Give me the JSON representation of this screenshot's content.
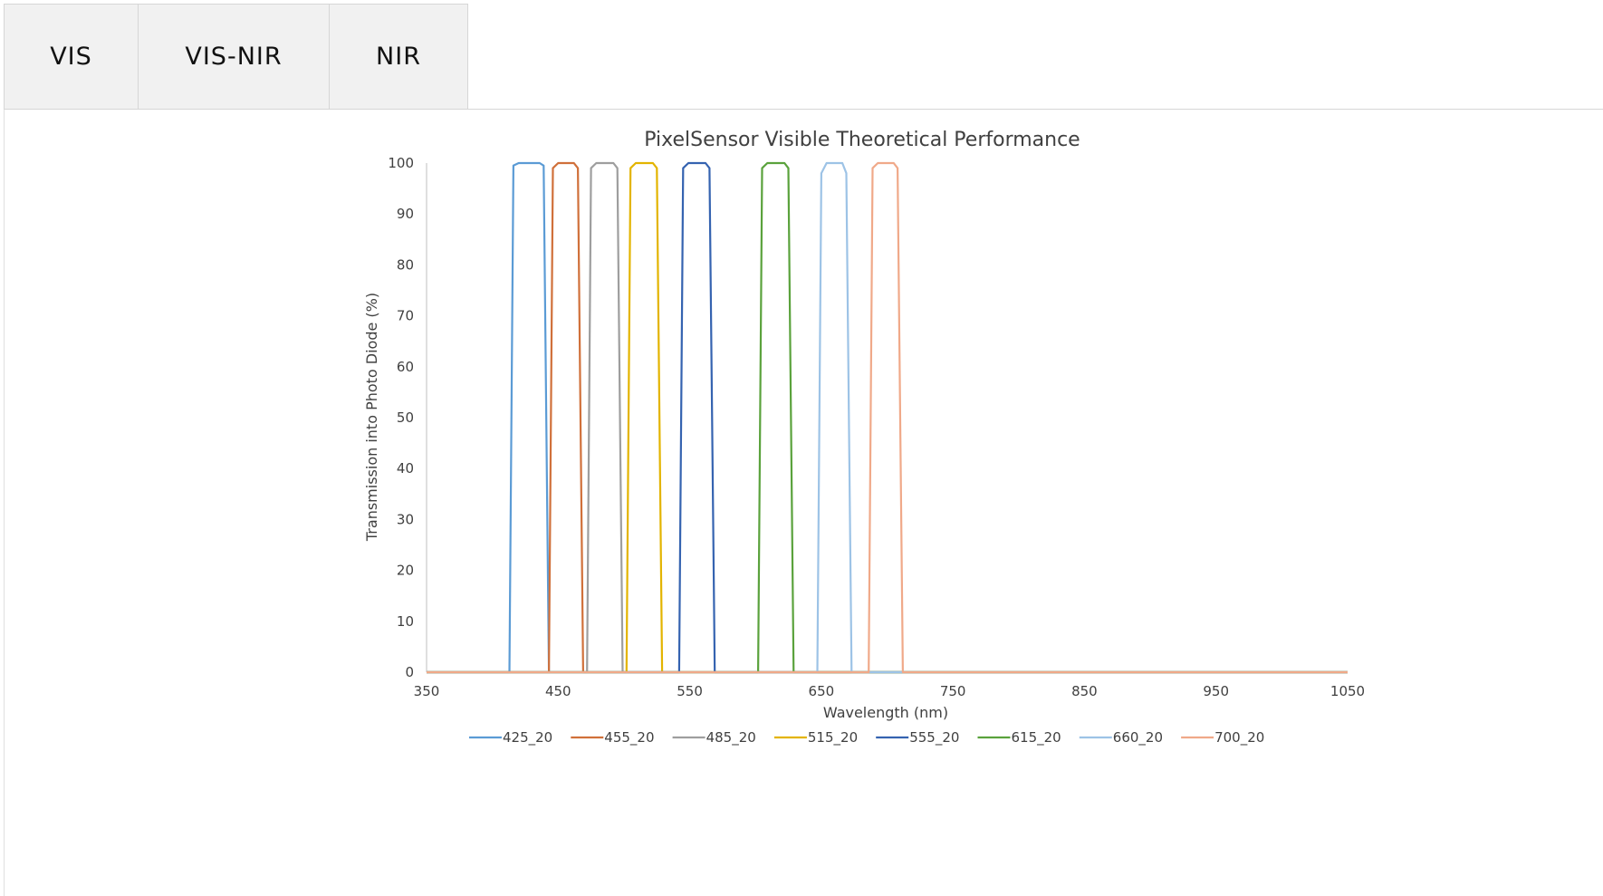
{
  "tabs": [
    {
      "label": "VIS"
    },
    {
      "label": "VIS-NIR"
    },
    {
      "label": "NIR"
    }
  ],
  "chart_data": {
    "type": "line",
    "title": "PixelSensor Visible Theoretical Performance",
    "xlabel": "Wavelength (nm)",
    "ylabel": "Transmission into Photo Diode (%)",
    "xlim": [
      350,
      1050
    ],
    "ylim": [
      0,
      100
    ],
    "xticks": [
      350,
      450,
      550,
      650,
      750,
      850,
      950,
      1050
    ],
    "yticks": [
      0,
      10,
      20,
      30,
      40,
      50,
      60,
      70,
      80,
      90,
      100
    ],
    "grid": false,
    "legend_position": "bottom",
    "series": [
      {
        "name": "425_20",
        "color": "#5b9bd5",
        "x": [
          350,
          413,
          416,
          420,
          436,
          439,
          443,
          1050
        ],
        "y": [
          0,
          0,
          99.5,
          100,
          100,
          99.5,
          0,
          0
        ]
      },
      {
        "name": "455_20",
        "color": "#d0703a",
        "x": [
          350,
          443,
          446,
          450,
          462,
          465,
          469,
          1050
        ],
        "y": [
          0,
          0,
          99,
          100,
          100,
          99,
          0,
          0
        ]
      },
      {
        "name": "485_20",
        "color": "#9e9e9e",
        "x": [
          350,
          472,
          475,
          479,
          492,
          495,
          499,
          1050
        ],
        "y": [
          0,
          0,
          99,
          100,
          100,
          99,
          0,
          0
        ]
      },
      {
        "name": "515_20",
        "color": "#e3b400",
        "x": [
          350,
          502,
          505,
          509,
          522,
          525,
          529,
          1050
        ],
        "y": [
          0,
          0,
          99,
          100,
          100,
          99,
          0,
          0
        ]
      },
      {
        "name": "555_20",
        "color": "#3563b0",
        "x": [
          350,
          542,
          545,
          549,
          562,
          565,
          569,
          1050
        ],
        "y": [
          0,
          0,
          99,
          100,
          100,
          99,
          0,
          0
        ]
      },
      {
        "name": "615_20",
        "color": "#5aa23c",
        "x": [
          350,
          602,
          605,
          609,
          622,
          625,
          629,
          1050
        ],
        "y": [
          0,
          0,
          99,
          100,
          100,
          99,
          0,
          0
        ]
      },
      {
        "name": "660_20",
        "color": "#9dc3e6",
        "x": [
          350,
          647,
          650,
          654,
          666,
          669,
          673,
          1050
        ],
        "y": [
          0,
          0,
          98,
          100,
          100,
          98,
          0,
          0
        ]
      },
      {
        "name": "700_20",
        "color": "#f0a989",
        "x": [
          350,
          686,
          689,
          693,
          705,
          708,
          712,
          1050
        ],
        "y": [
          0,
          0,
          99,
          100,
          100,
          99,
          0,
          0
        ]
      }
    ]
  }
}
